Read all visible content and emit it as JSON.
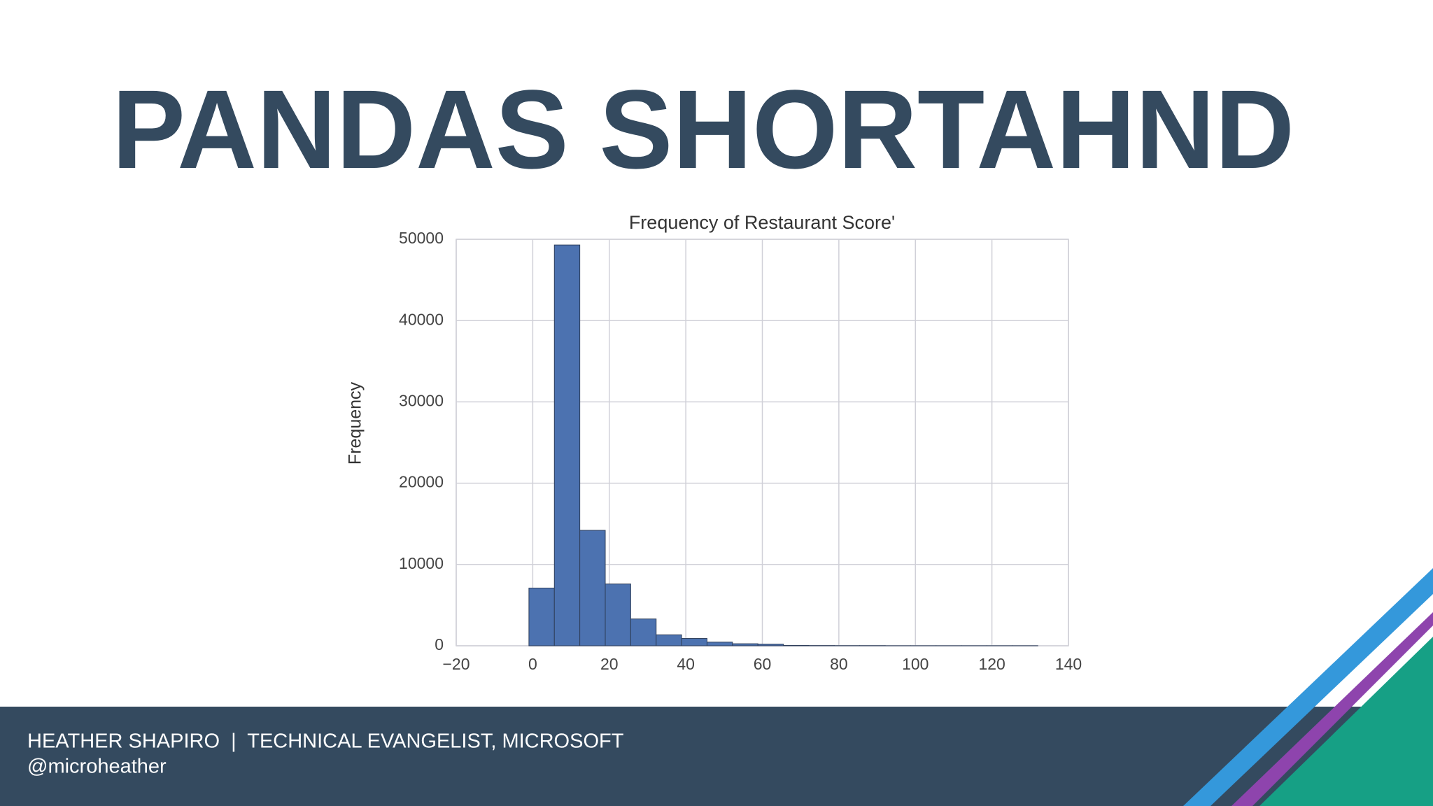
{
  "slide": {
    "title": "PANDAS SHORTAHND",
    "footer_line1": "HEATHER SHAPIRO  |  TECHNICAL EVANGELIST, MICROSOFT",
    "footer_line2": "@microheather"
  },
  "chart_data": {
    "type": "histogram",
    "title": "Frequency of Restaurant Score'",
    "y_label": "Frequency",
    "bins": [
      -1,
      5.65,
      12.3,
      18.95,
      25.6,
      32.25,
      38.9,
      45.55,
      52.2,
      58.85,
      65.5,
      72.15,
      78.8,
      85.45,
      92.1,
      98.75,
      105.4,
      112.05,
      118.7,
      125.35,
      132
    ],
    "counts": [
      7100,
      49300,
      14200,
      7600,
      3300,
      1350,
      900,
      450,
      250,
      200,
      50,
      30,
      20,
      20,
      10,
      10,
      10,
      10,
      10,
      10
    ],
    "color": "#4c72b0",
    "xlim": [
      -20,
      140
    ],
    "xticks": [
      {
        "value": -20,
        "label": "−20"
      },
      0,
      20,
      40,
      60,
      80,
      100,
      120,
      140
    ],
    "ylim": [
      0,
      50000
    ],
    "yticks": [
      0,
      10000,
      20000,
      30000,
      40000,
      50000
    ],
    "grid": true
  }
}
